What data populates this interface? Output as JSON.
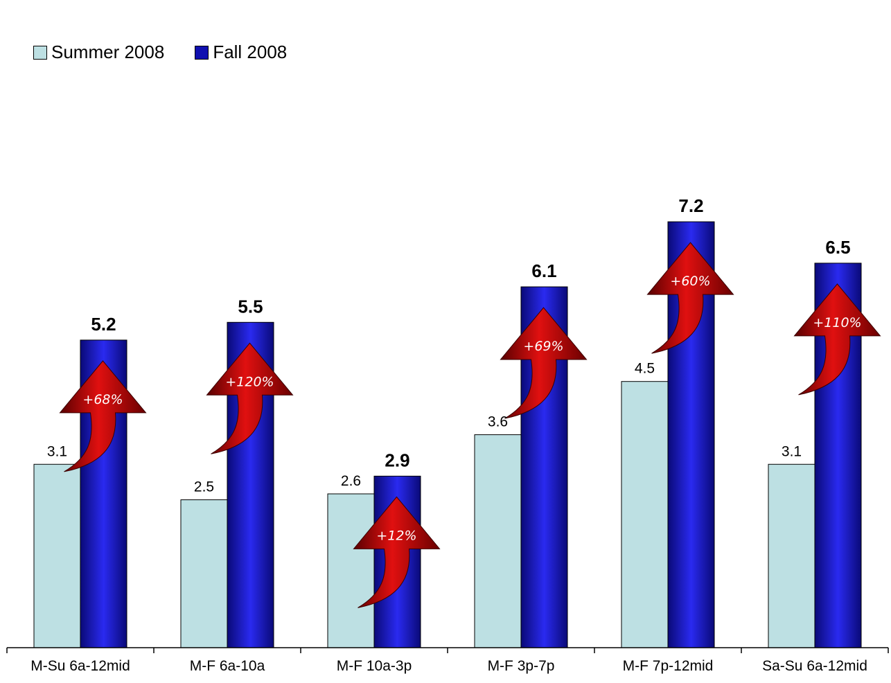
{
  "chart_data": {
    "type": "bar",
    "title": "",
    "xlabel": "",
    "ylabel": "",
    "ylim": [
      0,
      7.6
    ],
    "grid": false,
    "legend_position": "top-left",
    "categories": [
      "M-Su 6a-12mid",
      "M-F 6a-10a",
      "M-F 10a-3p",
      "M-F 3p-7p",
      "M-F 7p-12mid",
      "Sa-Su 6a-12mid"
    ],
    "series": [
      {
        "name": "Summer 2008",
        "values": [
          3.1,
          2.5,
          2.6,
          3.6,
          4.5,
          3.1
        ],
        "color": "#bde0e3"
      },
      {
        "name": "Fall 2008",
        "values": [
          5.2,
          5.5,
          2.9,
          6.1,
          7.2,
          6.5
        ],
        "color": "#1a1ab4"
      }
    ],
    "annotations": [
      "+68%",
      "+120%",
      "+12%",
      "+69%",
      "+60%",
      "+110%"
    ],
    "arrow_color": "#b00000"
  }
}
